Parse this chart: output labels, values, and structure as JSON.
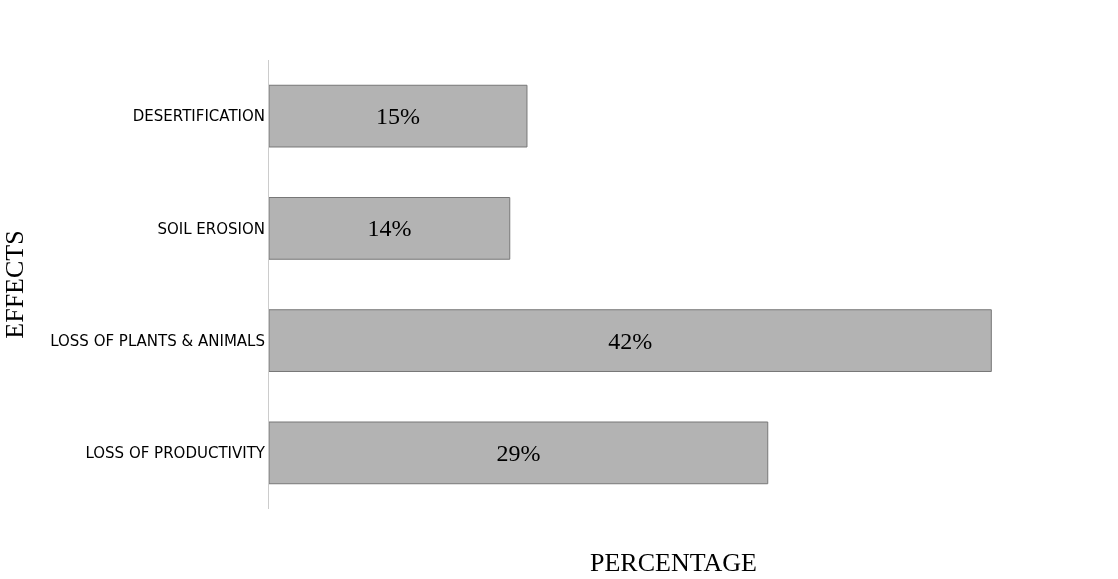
{
  "chart_data": {
    "type": "bar",
    "orientation": "horizontal",
    "xlabel": "PERCENTAGE",
    "ylabel": "EFFECTS",
    "categories": [
      "DESERTIFICATION",
      "SOIL EROSION",
      "LOSS OF PLANTS & ANIMALS",
      "LOSS OF PRODUCTIVITY"
    ],
    "values": [
      15,
      14,
      42,
      29
    ],
    "value_labels": [
      "15%",
      "14%",
      "42%",
      "29%"
    ],
    "color": "#b3b3b3"
  }
}
